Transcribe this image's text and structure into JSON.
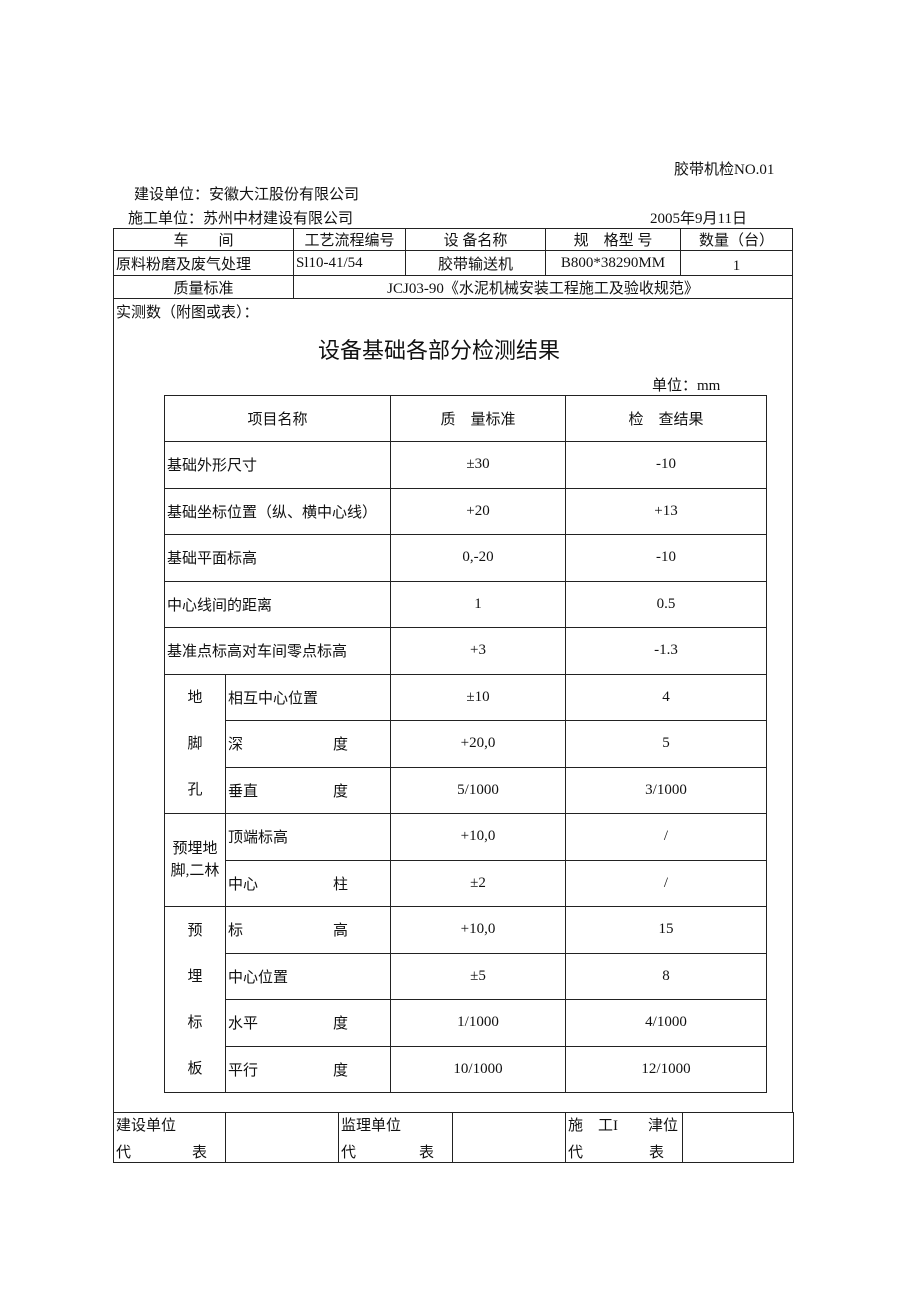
{
  "doc_no": "胶带机检NO.01",
  "build_unit": "建设单位：安徽大江股份有限公司",
  "construct_unit": "施工单位：苏州中材建设有限公司",
  "date": "2005年9月11日",
  "header": {
    "cols": [
      "车　　间",
      "工艺流程编号",
      "设 备名称",
      "规　格型 号",
      "数量（台）"
    ],
    "values": [
      "原料粉磨及废气处理",
      "Sl10-41/54",
      "胶带输送机",
      "B800*38290MM",
      "1"
    ]
  },
  "quality_label": "质量标准",
  "quality_value": "JCJ03-90《水泥机械安装工程施工及验收规范》",
  "measured_label": "实测数（附图或表）：",
  "report_title": "设备基础各部分检测结果",
  "unit": "单位：mm",
  "table": {
    "headers": [
      "项目名称",
      "质　量标准",
      "检　查结果"
    ],
    "rows": [
      {
        "name": "基础外形尺寸",
        "std": "±30",
        "res": "-10"
      },
      {
        "name": "基础坐标位置（纵、横中心线）",
        "std": "+20",
        "res": "+13"
      },
      {
        "name": "基础平面标高",
        "std": "0,-20",
        "res": "-10"
      },
      {
        "name": "中心线间的距离",
        "std": "1",
        "res": "0.5"
      },
      {
        "name": "基准点标高对车间零点标高",
        "std": "+3",
        "res": "-1.3"
      }
    ],
    "groups": [
      {
        "label": [
          "地",
          "脚",
          "孔"
        ],
        "rows": [
          {
            "name": [
              "相互中心位置",
              ""
            ],
            "std": "±10",
            "res": "4"
          },
          {
            "name": [
              "深",
              "度"
            ],
            "std": "+20,0",
            "res": "5"
          },
          {
            "name": [
              "垂直",
              "度"
            ],
            "std": "5/1000",
            "res": "3/1000"
          }
        ]
      },
      {
        "label": [
          "预埋地",
          "脚,二林"
        ],
        "rows": [
          {
            "name": [
              "顶端标高",
              ""
            ],
            "std": "+10,0",
            "res": "/"
          },
          {
            "name": [
              "中心",
              "柱"
            ],
            "std": "±2",
            "res": "/"
          }
        ]
      },
      {
        "label": [
          "预",
          "埋",
          "标",
          "板"
        ],
        "rows": [
          {
            "name": [
              "标",
              "高"
            ],
            "std": "+10,0",
            "res": "15"
          },
          {
            "name": [
              "中心位置",
              ""
            ],
            "std": "±5",
            "res": "8"
          },
          {
            "name": [
              "水平",
              "度"
            ],
            "std": "1/1000",
            "res": "4/1000"
          },
          {
            "name": [
              "平行",
              "度"
            ],
            "std": "10/1000",
            "res": "12/1000"
          }
        ]
      }
    ]
  },
  "footer": [
    {
      "l1": "建设单位",
      "l2a": "代",
      "l2b": "表"
    },
    {
      "l1": "监理单位",
      "l2a": "代",
      "l2b": "表"
    },
    {
      "l1": "施　工I　　津位",
      "l2a": "代",
      "l2b": "表"
    }
  ]
}
